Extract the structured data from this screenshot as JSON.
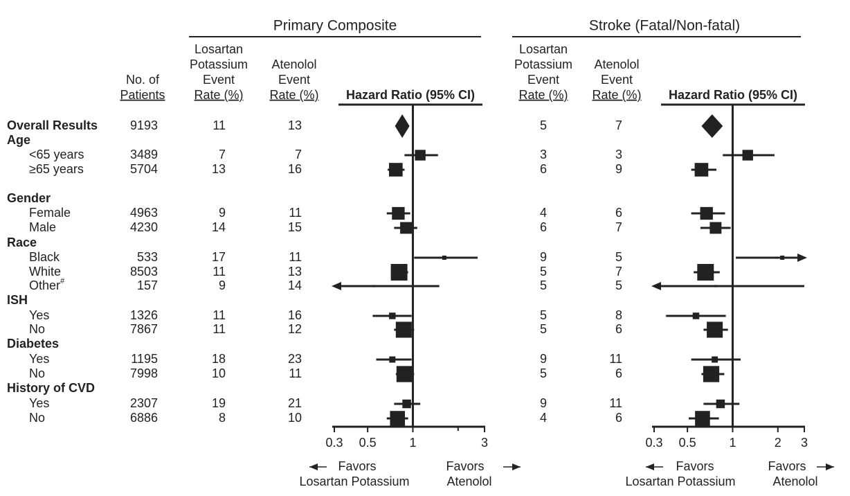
{
  "chart_data": {
    "type": "forest",
    "xscale": "log",
    "columns": {
      "patients": [
        "No. of",
        "Patients"
      ]
    },
    "panels": [
      {
        "title": "Primary Composite",
        "losartan_header": [
          "Losartan",
          "Potassium",
          "Event",
          "Rate (%)"
        ],
        "atenolol_header": [
          "Atenolol",
          "Event",
          "Rate (%)"
        ],
        "hr_header": "Hazard Ratio (95% CI)",
        "xlim": [
          0.3,
          3
        ],
        "xticks": [
          0.3,
          0.5,
          1,
          3
        ],
        "minor_xticks": [
          2
        ],
        "favors_left": [
          "Favors",
          "Losartan Potassium"
        ],
        "favors_right": [
          "Favors",
          "Atenolol"
        ]
      },
      {
        "title": "Stroke (Fatal/Non-fatal)",
        "losartan_header": [
          "Losartan",
          "Potassium",
          "Event",
          "Rate (%)"
        ],
        "atenolol_header": [
          "Atenolol",
          "Event",
          "Rate (%)"
        ],
        "hr_header": "Hazard Ratio (95% CI)",
        "xlim": [
          0.3,
          3
        ],
        "xticks": [
          0.3,
          0.5,
          1,
          2,
          3
        ],
        "minor_xticks": [],
        "favors_left": [
          "Favors",
          "Losartan Potassium"
        ],
        "favors_right": [
          "Favors",
          "Atenolol"
        ]
      }
    ],
    "rows": [
      {
        "label": "Overall Results",
        "level": 0,
        "marker": "diamond",
        "n": 9193,
        "panels": [
          {
            "losartan": 11,
            "atenolol": 13,
            "hr": 0.85,
            "ci_low": 0.76,
            "ci_high": 0.95
          },
          {
            "losartan": 5,
            "atenolol": 7,
            "hr": 0.73,
            "ci_low": 0.62,
            "ci_high": 0.86
          }
        ]
      },
      {
        "label": "Age",
        "level": 0
      },
      {
        "label": "<65 years",
        "level": 1,
        "n": 3489,
        "panels": [
          {
            "losartan": 7,
            "atenolol": 7,
            "hr": 1.12,
            "ci_low": 0.88,
            "ci_high": 1.47
          },
          {
            "losartan": 3,
            "atenolol": 3,
            "hr": 1.26,
            "ci_low": 0.86,
            "ci_high": 1.9
          }
        ]
      },
      {
        "label": "≥65 years",
        "level": 1,
        "n": 5704,
        "panels": [
          {
            "losartan": 13,
            "atenolol": 16,
            "hr": 0.77,
            "ci_low": 0.68,
            "ci_high": 0.88
          },
          {
            "losartan": 6,
            "atenolol": 9,
            "hr": 0.62,
            "ci_low": 0.53,
            "ci_high": 0.78
          }
        ]
      },
      {
        "label": "Gender",
        "level": 0
      },
      {
        "label": "Female",
        "level": 1,
        "n": 4963,
        "panels": [
          {
            "losartan": 9,
            "atenolol": 11,
            "hr": 0.8,
            "ci_low": 0.67,
            "ci_high": 0.96
          },
          {
            "losartan": 4,
            "atenolol": 6,
            "hr": 0.67,
            "ci_low": 0.53,
            "ci_high": 0.89
          }
        ]
      },
      {
        "label": "Male",
        "level": 1,
        "n": 4230,
        "panels": [
          {
            "losartan": 14,
            "atenolol": 15,
            "hr": 0.9,
            "ci_low": 0.75,
            "ci_high": 1.07
          },
          {
            "losartan": 6,
            "atenolol": 7,
            "hr": 0.77,
            "ci_low": 0.61,
            "ci_high": 0.97
          }
        ]
      },
      {
        "label": "Race",
        "level": 0
      },
      {
        "label": "Black",
        "level": 1,
        "n": 533,
        "panels": [
          {
            "losartan": 17,
            "atenolol": 11,
            "hr": 1.62,
            "ci_low": 1.02,
            "ci_high": 2.7
          },
          {
            "losartan": 9,
            "atenolol": 5,
            "hr": 2.14,
            "ci_low": 1.05,
            "ci_high": 3.5
          }
        ]
      },
      {
        "label": "White",
        "level": 1,
        "n": 8503,
        "panels": [
          {
            "losartan": 11,
            "atenolol": 13,
            "hr": 0.81,
            "ci_low": 0.72,
            "ci_high": 0.93
          },
          {
            "losartan": 5,
            "atenolol": 7,
            "hr": 0.66,
            "ci_low": 0.55,
            "ci_high": 0.82
          }
        ]
      },
      {
        "label": "Other",
        "label_sup": "#",
        "level": 1,
        "n": 157,
        "panels": [
          {
            "losartan": 9,
            "atenolol": 14,
            "hr": 0.55,
            "ci_low": 0.25,
            "ci_high": 1.5
          },
          {
            "losartan": 5,
            "atenolol": 5,
            "hr": 0.77,
            "ci_low": 0.25,
            "ci_high": 3
          }
        ]
      },
      {
        "label": "ISH",
        "level": 0
      },
      {
        "label": "Yes",
        "level": 1,
        "n": 1326,
        "panels": [
          {
            "losartan": 11,
            "atenolol": 16,
            "hr": 0.73,
            "ci_low": 0.54,
            "ci_high": 0.98
          },
          {
            "losartan": 5,
            "atenolol": 8,
            "hr": 0.57,
            "ci_low": 0.36,
            "ci_high": 0.9
          }
        ]
      },
      {
        "label": "No",
        "level": 1,
        "n": 7867,
        "panels": [
          {
            "losartan": 11,
            "atenolol": 12,
            "hr": 0.87,
            "ci_low": 0.75,
            "ci_high": 1.02
          },
          {
            "losartan": 5,
            "atenolol": 6,
            "hr": 0.76,
            "ci_low": 0.64,
            "ci_high": 0.93
          }
        ]
      },
      {
        "label": "Diabetes",
        "level": 0
      },
      {
        "label": "Yes",
        "level": 1,
        "n": 1195,
        "panels": [
          {
            "losartan": 18,
            "atenolol": 23,
            "hr": 0.73,
            "ci_low": 0.57,
            "ci_high": 0.98
          },
          {
            "losartan": 9,
            "atenolol": 11,
            "hr": 0.76,
            "ci_low": 0.53,
            "ci_high": 1.13
          }
        ]
      },
      {
        "label": "No",
        "level": 1,
        "n": 7998,
        "panels": [
          {
            "losartan": 10,
            "atenolol": 11,
            "hr": 0.88,
            "ci_low": 0.77,
            "ci_high": 1.02
          },
          {
            "losartan": 5,
            "atenolol": 6,
            "hr": 0.72,
            "ci_low": 0.62,
            "ci_high": 0.88
          }
        ]
      },
      {
        "label": "History of CVD",
        "level": 0
      },
      {
        "label": "Yes",
        "level": 1,
        "n": 2307,
        "panels": [
          {
            "losartan": 19,
            "atenolol": 21,
            "hr": 0.91,
            "ci_low": 0.75,
            "ci_high": 1.12
          },
          {
            "losartan": 9,
            "atenolol": 11,
            "hr": 0.83,
            "ci_low": 0.64,
            "ci_high": 1.11
          }
        ]
      },
      {
        "label": "No",
        "level": 1,
        "n": 6886,
        "panels": [
          {
            "losartan": 8,
            "atenolol": 10,
            "hr": 0.79,
            "ci_low": 0.67,
            "ci_high": 0.93
          },
          {
            "losartan": 4,
            "atenolol": 6,
            "hr": 0.63,
            "ci_low": 0.51,
            "ci_high": 0.81
          }
        ]
      }
    ]
  }
}
